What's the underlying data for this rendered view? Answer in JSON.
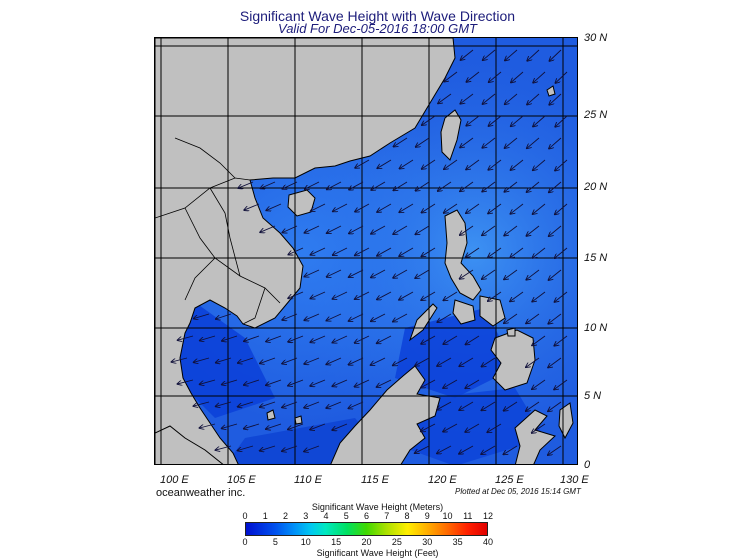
{
  "header": {
    "title": "Significant Wave Height with Wave Direction",
    "subtitle": "Valid For Dec-05-2016 18:00 GMT"
  },
  "map": {
    "lat_labels": [
      "30 N",
      "25 N",
      "20 N",
      "15 N",
      "10 N",
      "5 N",
      "0"
    ],
    "lon_labels": [
      "100 E",
      "105 E",
      "110 E",
      "115 E",
      "120 E",
      "125 E",
      "130 E"
    ],
    "colors": {
      "land": "#c0c0c0",
      "sea_low": "#1f5ce0",
      "sea_high": "#3a8cf0",
      "arrow": "#10103a"
    }
  },
  "footer": {
    "brand": "oceanweather inc.",
    "plotted": "Plotted at Dec 05, 2016 15:14 GMT"
  },
  "colorbar": {
    "title_top": "Significant Wave Height (Meters)",
    "meters": [
      "0",
      "1",
      "2",
      "3",
      "4",
      "5",
      "6",
      "7",
      "8",
      "9",
      "10",
      "11",
      "12"
    ],
    "feet": [
      "0",
      "5",
      "10",
      "15",
      "20",
      "25",
      "30",
      "35",
      "40"
    ],
    "title_bottom": "Significant Wave Height (Feet)"
  }
}
